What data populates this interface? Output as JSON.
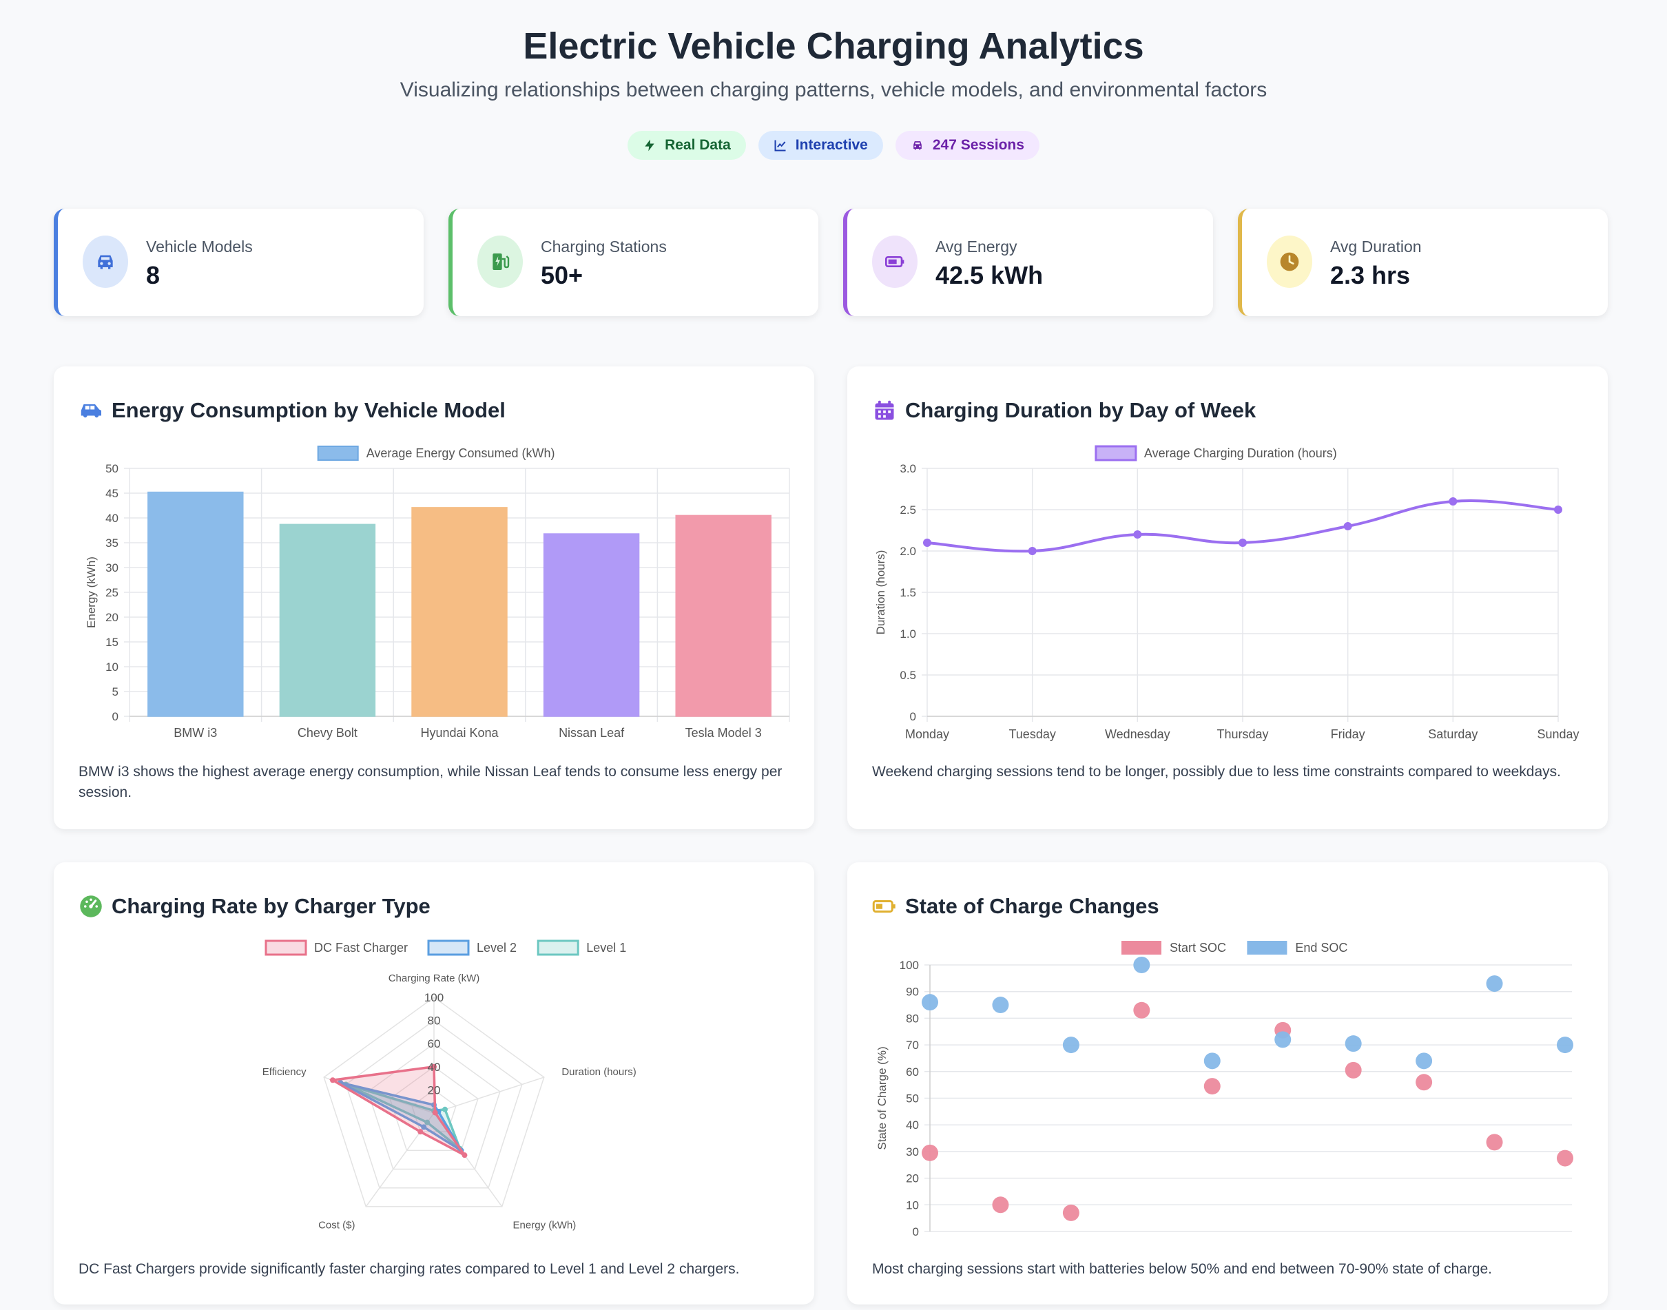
{
  "header": {
    "title": "Electric Vehicle Charging Analytics",
    "subtitle": "Visualizing relationships between charging patterns, vehicle models, and environmental factors",
    "badges": [
      {
        "label": "Real Data",
        "icon": "bolt-icon"
      },
      {
        "label": "Interactive",
        "icon": "line-chart-icon"
      },
      {
        "label": "247 Sessions",
        "icon": "car-icon"
      }
    ]
  },
  "stats": [
    {
      "label": "Vehicle Models",
      "value": "8",
      "icon": "car-icon",
      "accent": "#4a7fe0"
    },
    {
      "label": "Charging Stations",
      "value": "50+",
      "icon": "charging-station-icon",
      "accent": "#5cbf6a"
    },
    {
      "label": "Avg Energy",
      "value": "42.5 kWh",
      "icon": "battery-icon",
      "accent": "#9b59e0"
    },
    {
      "label": "Avg Duration",
      "value": "2.3 hrs",
      "icon": "clock-icon",
      "accent": "#e0b84a"
    }
  ],
  "panels": [
    {
      "title": "Energy Consumption by Vehicle Model",
      "icon": "car-icon",
      "desc": "BMW i3 shows the highest average energy consumption, while Nissan Leaf tends to consume less energy per session."
    },
    {
      "title": "Charging Duration by Day of Week",
      "icon": "calendar-icon",
      "desc": "Weekend charging sessions tend to be longer, possibly due to less time constraints compared to weekdays."
    },
    {
      "title": "Charging Rate by Charger Type",
      "icon": "gauge-icon",
      "desc": "DC Fast Chargers provide significantly faster charging rates compared to Level 1 and Level 2 chargers."
    },
    {
      "title": "State of Charge Changes",
      "icon": "battery-icon",
      "desc": "Most charging sessions start with batteries below 50% and end between 70-90% state of charge."
    }
  ],
  "chart_data": [
    {
      "type": "bar",
      "categories": [
        "BMW i3",
        "Chevy Bolt",
        "Hyundai Kona",
        "Nissan Leaf",
        "Tesla Model 3"
      ],
      "series": [
        {
          "name": "Average Energy Consumed (kWh)",
          "values": [
            45.2,
            38.7,
            42.1,
            36.8,
            40.5
          ]
        }
      ],
      "colors": [
        "#8bbbea",
        "#9bd3d0",
        "#f6bd84",
        "#b09af7",
        "#f29aab"
      ],
      "ylabel": "Energy (kWh)",
      "ylim": [
        0,
        50
      ],
      "yticks": [
        0,
        5,
        10,
        15,
        20,
        25,
        30,
        35,
        40,
        45,
        50
      ],
      "grid": true,
      "legend": "top-center"
    },
    {
      "type": "line",
      "categories": [
        "Monday",
        "Tuesday",
        "Wednesday",
        "Thursday",
        "Friday",
        "Saturday",
        "Sunday"
      ],
      "series": [
        {
          "name": "Average Charging Duration (hours)",
          "values": [
            2.1,
            2.0,
            2.2,
            2.1,
            2.3,
            2.6,
            2.5
          ]
        }
      ],
      "color": "#9b6ff0",
      "ylabel": "Duration (hours)",
      "ylim": [
        0,
        3.0
      ],
      "yticks": [
        "0",
        "0.5",
        "1.0",
        "1.5",
        "2.0",
        "2.5",
        "3.0"
      ],
      "grid": true,
      "legend": "top-center"
    },
    {
      "type": "radar",
      "axes": [
        "Charging Rate (kW)",
        "Duration (hours)",
        "Energy (kWh)",
        "Cost ($)",
        "Efficiency"
      ],
      "rmax": 100,
      "rticks": [
        20,
        40,
        60,
        80,
        100
      ],
      "series": [
        {
          "name": "DC Fast Charger",
          "values": [
            40,
            1,
            45,
            20,
            92
          ],
          "color": "#e8718a"
        },
        {
          "name": "Level 2",
          "values": [
            7,
            4,
            40,
            15,
            85
          ],
          "color": "#5a9ee0"
        },
        {
          "name": "Level 1",
          "values": [
            2,
            10,
            38,
            10,
            80
          ],
          "color": "#6cc7c1"
        }
      ],
      "legend": "top-center"
    },
    {
      "type": "scatter",
      "x": [
        0,
        1,
        2,
        3,
        4,
        5,
        6,
        7,
        8,
        9
      ],
      "series": [
        {
          "name": "Start SOC",
          "values": [
            29.5,
            10,
            7,
            83,
            54.5,
            75.5,
            60.5,
            56,
            33.5,
            27.5
          ],
          "color": "#ec8a9d"
        },
        {
          "name": "End SOC",
          "values": [
            86,
            85,
            70,
            100,
            64,
            72,
            70.5,
            64,
            93,
            70
          ],
          "color": "#86b8e8"
        }
      ],
      "ylabel": "State of Charge (%)",
      "ylim": [
        0,
        100
      ],
      "yticks": [
        0,
        10,
        20,
        30,
        40,
        50,
        60,
        70,
        80,
        90,
        100
      ],
      "grid": true,
      "legend": "top-center"
    }
  ]
}
